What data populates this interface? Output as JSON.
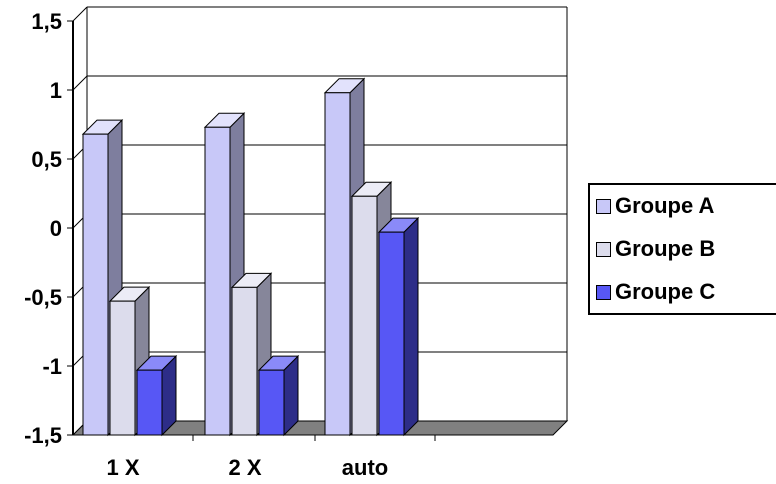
{
  "chart_data": {
    "type": "bar",
    "categories": [
      "1 X",
      "2 X",
      "auto"
    ],
    "series": [
      {
        "name": "Groupe A",
        "values": [
          0.68,
          0.73,
          0.98
        ]
      },
      {
        "name": "Groupe B",
        "values": [
          -0.53,
          -0.43,
          0.23
        ]
      },
      {
        "name": "Groupe C",
        "values": [
          -1.03,
          -1.03,
          -0.03
        ]
      }
    ],
    "ylim": [
      -1.5,
      1.5
    ],
    "yticks": [
      {
        "value": 1.5,
        "label": "1,5"
      },
      {
        "value": 1,
        "label": "1"
      },
      {
        "value": 0.5,
        "label": "0,5"
      },
      {
        "value": 0,
        "label": "0"
      },
      {
        "value": -0.5,
        "label": "-0,5"
      },
      {
        "value": -1,
        "label": "-1"
      },
      {
        "value": -1.5,
        "label": "-1,5"
      }
    ],
    "grid": true,
    "legend_position": "right",
    "projection": "3d",
    "colors": {
      "Groupe A": {
        "front": "#c8c8f8",
        "side": "#7e7e9e",
        "top": "#e2e2fc"
      },
      "Groupe B": {
        "front": "#dcdcec",
        "side": "#86869a",
        "top": "#ececf6"
      },
      "Groupe C": {
        "front": "#5757f5",
        "side": "#2d2d88",
        "top": "#8a8af8"
      },
      "gridline": "#000000",
      "floor": "#808080"
    }
  }
}
